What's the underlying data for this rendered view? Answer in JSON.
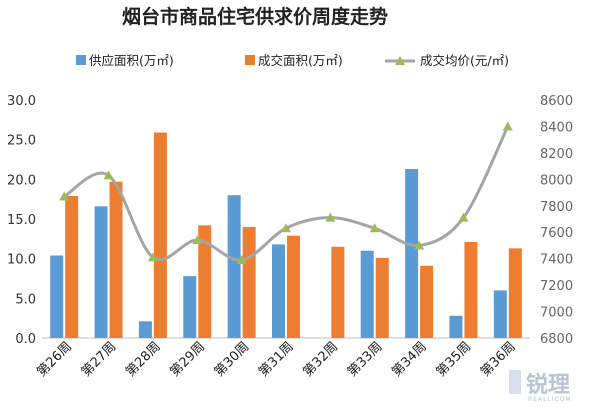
{
  "chart_data": {
    "type": "bar",
    "title": "烟台市商品住宅供求价周度走势",
    "categories": [
      "第26周",
      "第27周",
      "第28周",
      "第29周",
      "第30周",
      "第31周",
      "第32周",
      "第33周",
      "第34周",
      "第35周",
      "第36周"
    ],
    "series": [
      {
        "name": "供应面积(万㎡)",
        "type": "bar",
        "axis": "left",
        "color": "#5b9bd5",
        "values": [
          10.4,
          16.6,
          2.1,
          7.8,
          18.0,
          11.8,
          0,
          11.0,
          21.3,
          2.8,
          6.0
        ]
      },
      {
        "name": "成交面积(万㎡)",
        "type": "bar",
        "axis": "left",
        "color": "#ed7d31",
        "values": [
          17.9,
          19.7,
          25.9,
          14.2,
          14.0,
          12.9,
          11.5,
          10.1,
          9.1,
          12.1,
          11.3
        ]
      },
      {
        "name": "成交均价(元/㎡)",
        "type": "line",
        "axis": "right",
        "color": "#a5a5a5",
        "marker_color": "#9bbb59",
        "smooth": true,
        "values": [
          7870,
          8030,
          7410,
          7540,
          7390,
          7630,
          7710,
          7630,
          7500,
          7710,
          8400
        ]
      }
    ],
    "y_left": {
      "min": 0,
      "max": 30,
      "ticks": [
        "0.0",
        "5.0",
        "10.0",
        "15.0",
        "20.0",
        "25.0",
        "30.0"
      ]
    },
    "y_right": {
      "min": 6800,
      "max": 8600,
      "ticks": [
        "6800",
        "7000",
        "7200",
        "7400",
        "7600",
        "7800",
        "8000",
        "8200",
        "8400",
        "8600"
      ]
    },
    "legend_position": "top",
    "grid": false
  },
  "watermark": {
    "text": "锐理",
    "subtext": "REALLICOM"
  }
}
